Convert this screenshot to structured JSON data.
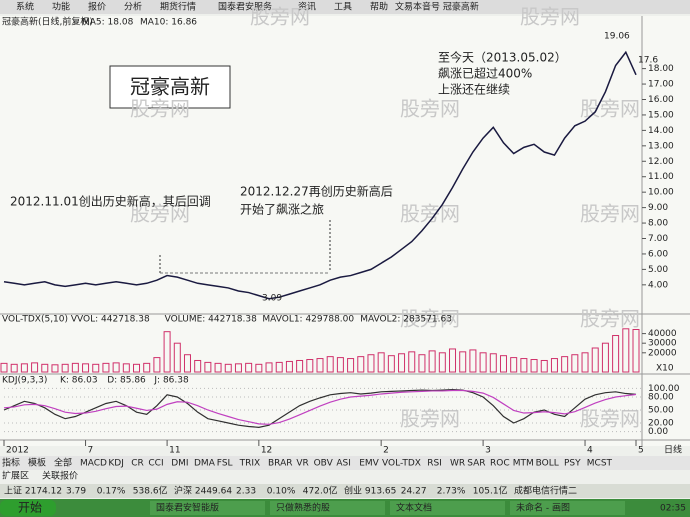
{
  "menu": [
    "系统",
    "功能",
    "报价",
    "分析",
    "期货行情",
    "国泰君安服务",
    "资讯",
    "工具",
    "帮助"
  ],
  "window_title": "文易本音号  冠豪高新",
  "chart_data": {
    "type": "stock",
    "title": "冠豪高新(日线,前复权)",
    "ma_labels": [
      "MA5: 18.08",
      "MA10: 16.86"
    ],
    "volume_header": [
      "VOL-TDX(5,10) VVOL: 442718.38",
      "VOLUME: 442718.38",
      "MAVOL1: 429788.00",
      "MAVOL2: 283571.63"
    ],
    "kdj_header": [
      "KDJ(9,3,3)",
      "K: 86.03",
      "D: 85.86",
      "J: 86.38"
    ],
    "watermark": "股旁网",
    "annotations": {
      "box": "冠豪高新",
      "note1": "2012.11.01创出历史新高，其后回调",
      "note2": [
        "2012.12.27再创历史新高后",
        "开始了飙涨之旅"
      ],
      "note3": [
        "至今天（2013.05.02）",
        "飙涨已超过400%",
        "上涨还在继续"
      ],
      "high": "19.06",
      "last": "17.6",
      "low": "3.09"
    },
    "price": {
      "name": "收盘",
      "color": "#1a1a40",
      "values": [
        4.2,
        4.1,
        4.0,
        4.1,
        4.2,
        4.0,
        3.9,
        4.0,
        4.1,
        4.0,
        4.1,
        4.2,
        4.1,
        4.0,
        4.1,
        4.3,
        4.6,
        4.5,
        4.3,
        4.1,
        4.0,
        3.9,
        3.8,
        3.6,
        3.5,
        3.3,
        3.1,
        3.2,
        3.4,
        3.6,
        3.8,
        4.0,
        4.3,
        4.5,
        4.6,
        4.8,
        5.0,
        5.4,
        5.8,
        6.3,
        6.8,
        7.5,
        8.3,
        9.2,
        10.3,
        11.5,
        12.6,
        13.5,
        14.2,
        13.2,
        12.5,
        12.9,
        13.1,
        12.6,
        12.4,
        13.5,
        14.3,
        14.6,
        15.2,
        16.5,
        18.2,
        19.06,
        17.6
      ]
    },
    "ylim": [
      2.5,
      20.5
    ],
    "yticks": [
      {
        "value": 4,
        "label": "4.00"
      },
      {
        "value": 5,
        "label": "5.00"
      },
      {
        "value": 6,
        "label": "6.00"
      },
      {
        "value": 7,
        "label": "7.00"
      },
      {
        "value": 8,
        "label": "8.00"
      },
      {
        "value": 9,
        "label": "9.00"
      },
      {
        "value": 10,
        "label": "10.00"
      },
      {
        "value": 11,
        "label": "11.00"
      },
      {
        "value": 12,
        "label": "12.00"
      },
      {
        "value": 13,
        "label": "13.00"
      },
      {
        "value": 14,
        "label": "14.00"
      },
      {
        "value": 15,
        "label": "15.00"
      },
      {
        "value": 16,
        "label": "16.00"
      },
      {
        "value": 17,
        "label": "17.00"
      },
      {
        "value": 18,
        "label": "18.00"
      }
    ],
    "volume": {
      "color": "#d0306a",
      "values": [
        9000,
        8000,
        8500,
        9500,
        8000,
        7500,
        8000,
        9000,
        8500,
        8000,
        9000,
        9500,
        8500,
        8000,
        9000,
        15000,
        42000,
        30000,
        18000,
        12000,
        10000,
        9000,
        8000,
        8500,
        9000,
        8000,
        9500,
        10000,
        11000,
        12000,
        13000,
        14000,
        16000,
        15000,
        14000,
        16000,
        18000,
        20000,
        17000,
        19000,
        21000,
        18000,
        22000,
        20000,
        24000,
        21000,
        23000,
        20000,
        19000,
        17000,
        15000,
        14000,
        13000,
        12000,
        14000,
        16000,
        18000,
        20000,
        25000,
        30000,
        38000,
        45000,
        44272
      ]
    },
    "vol_ylim": [
      0,
      50000
    ],
    "vol_yticks": [
      20000,
      30000,
      40000
    ],
    "vol_unit": "X10",
    "kdj": [
      {
        "name": "K",
        "color": "#303030",
        "values": [
          50,
          60,
          70,
          65,
          55,
          40,
          30,
          35,
          45,
          55,
          65,
          70,
          60,
          45,
          40,
          60,
          85,
          80,
          65,
          45,
          30,
          25,
          20,
          15,
          12,
          10,
          15,
          30,
          45,
          60,
          70,
          78,
          85,
          88,
          90,
          87,
          89,
          92,
          93,
          94,
          95,
          96,
          95,
          96,
          97,
          96,
          90,
          80,
          60,
          35,
          20,
          30,
          45,
          50,
          40,
          35,
          55,
          75,
          85,
          90,
          92,
          88,
          86.03
        ]
      },
      {
        "name": "D",
        "color": "#c040c0",
        "values": [
          55,
          57,
          62,
          63,
          60,
          53,
          45,
          42,
          43,
          47,
          53,
          58,
          59,
          54,
          49,
          52,
          63,
          69,
          68,
          60,
          50,
          42,
          35,
          28,
          23,
          18,
          17,
          21,
          29,
          39,
          49,
          59,
          68,
          75,
          80,
          82,
          84,
          87,
          89,
          91,
          92,
          93,
          94,
          94,
          95,
          95,
          93,
          89,
          79,
          64,
          49,
          43,
          44,
          46,
          44,
          41,
          46,
          56,
          66,
          74,
          80,
          83,
          85.86
        ]
      }
    ],
    "kdj_ylim": [
      -10,
      110
    ],
    "kdj_yticks": [
      {
        "value": 0,
        "label": "0.00"
      },
      {
        "value": 20,
        "label": "20.00"
      },
      {
        "value": 50,
        "label": "50.00"
      },
      {
        "value": 80,
        "label": "80.00"
      },
      {
        "value": 100,
        "label": "100.00"
      }
    ],
    "date_ticks": [
      {
        "value": 0,
        "label": "2012"
      },
      {
        "value": 8,
        "label": "7"
      },
      {
        "value": 16,
        "label": "11"
      },
      {
        "value": 25,
        "label": "12"
      },
      {
        "value": 37,
        "label": "2"
      },
      {
        "value": 47,
        "label": "3"
      },
      {
        "value": 57,
        "label": "4"
      },
      {
        "value": 62,
        "label": "5"
      }
    ],
    "period": "日线"
  },
  "tabs": [
    "指标",
    "模板",
    "全部",
    "MACD",
    "KDJ",
    "CR",
    "CCI",
    "DMI",
    "DMA",
    "FSL",
    "TRIX",
    "BRAR",
    "VR",
    "OBV",
    "ASI",
    "EMV",
    "VOL-TDX",
    "RSI",
    "WR",
    "SAR",
    "ROC",
    "MTM",
    "BOLL",
    "PSY",
    "MCST"
  ],
  "tabs2": [
    "扩展区",
    "关联报价"
  ],
  "status": [
    "上证 2174.12",
    "3.79",
    "0.17%",
    "538.6亿",
    "沪深 2449.64",
    "2.33",
    "0.10%",
    "472.0亿",
    "创业 913.65",
    "24.27",
    "2.73%",
    "105.1亿",
    "成都电信行情二"
  ],
  "taskbar": {
    "start": "开始",
    "items": [
      "国泰君安智能版",
      "只做熟悉的股",
      "文本文档",
      "未命名 - 画图"
    ],
    "clock": "02:35"
  }
}
